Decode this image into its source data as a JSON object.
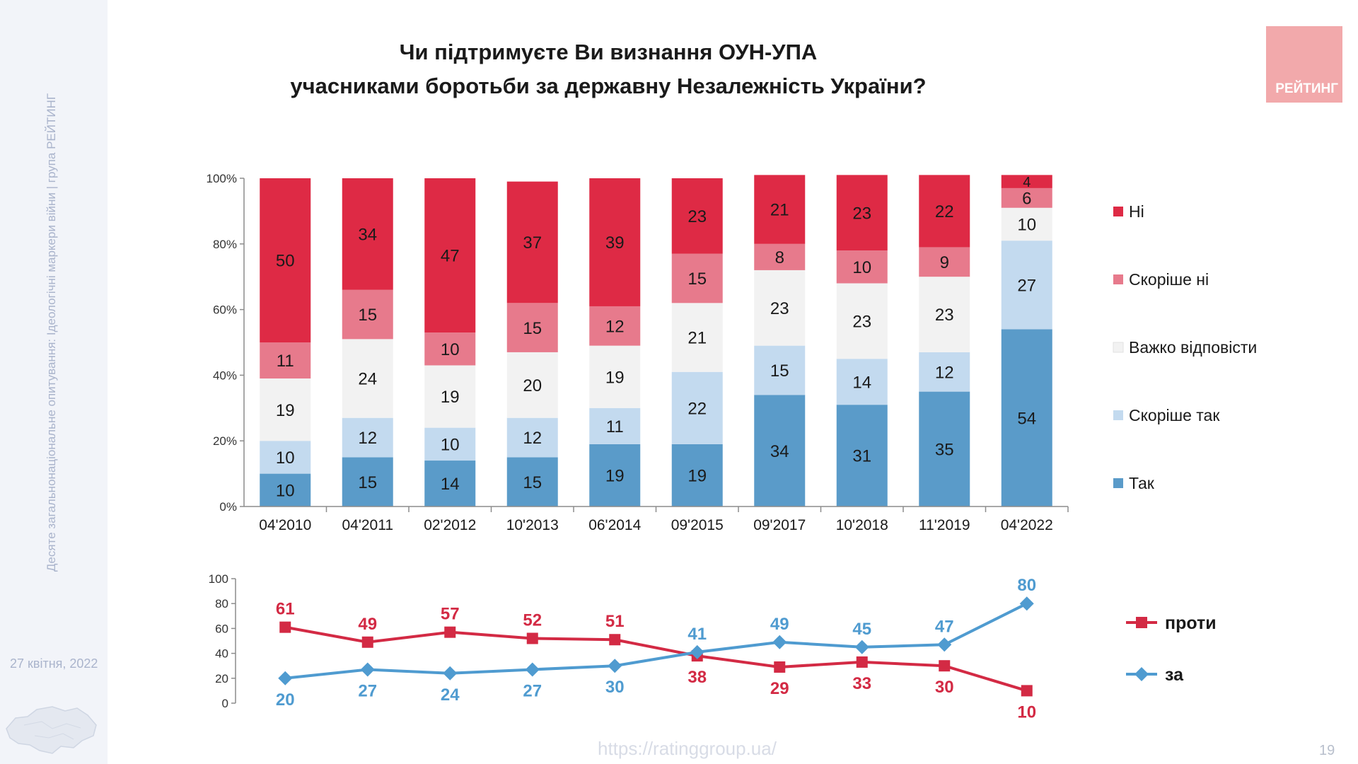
{
  "title_lines": [
    "Чи підтримуєте Ви визнання ОУН-УПА",
    "учасниками боротьби за державну Незалежність України?"
  ],
  "sidebar": {
    "vertical_text": "Десяте загальнонаціональне опитування: Ідеологічні маркери війни  |  група РЕЙТИНГ",
    "date": "27 квітня, 2022"
  },
  "logo_text": "РЕЙТИНГ",
  "footer": {
    "url": "https://ratinggroup.ua/",
    "page": "19"
  },
  "chart_data": [
    {
      "type": "bar",
      "stacked": true,
      "categories": [
        "04'2010",
        "04'2011",
        "02'2012",
        "10'2013",
        "06'2014",
        "09'2015",
        "09'2017",
        "10'2018",
        "11'2019",
        "04'2022"
      ],
      "yticks": [
        "0%",
        "20%",
        "40%",
        "60%",
        "80%",
        "100%"
      ],
      "ylim": [
        0,
        100
      ],
      "legend_position": "right",
      "series": [
        {
          "name": "Так",
          "color": "#5a9bc9",
          "values": [
            10,
            15,
            14,
            15,
            19,
            19,
            34,
            31,
            35,
            54
          ]
        },
        {
          "name": "Скоріше так",
          "color": "#c3daef",
          "values": [
            10,
            12,
            10,
            12,
            11,
            22,
            15,
            14,
            12,
            27
          ]
        },
        {
          "name": "Важко відповісти",
          "color": "#f2f2f2",
          "values": [
            19,
            24,
            19,
            20,
            19,
            21,
            23,
            23,
            23,
            10
          ]
        },
        {
          "name": "Скоріше ні",
          "color": "#e77a8c",
          "values": [
            11,
            15,
            10,
            15,
            12,
            15,
            8,
            10,
            9,
            6
          ]
        },
        {
          "name": "Ні",
          "color": "#de2a45",
          "values": [
            50,
            34,
            47,
            37,
            39,
            23,
            21,
            23,
            22,
            4
          ]
        }
      ]
    },
    {
      "type": "line",
      "categories": [
        "04'2010",
        "04'2011",
        "02'2012",
        "10'2013",
        "06'2014",
        "09'2015",
        "09'2017",
        "10'2018",
        "11'2019",
        "04'2022"
      ],
      "yticks": [
        "0",
        "20",
        "40",
        "60",
        "80",
        "100"
      ],
      "ylim": [
        0,
        100
      ],
      "legend_position": "right",
      "series": [
        {
          "name": "проти",
          "color": "#d32a44",
          "marker": "square",
          "values": [
            61,
            49,
            57,
            52,
            51,
            38,
            29,
            33,
            30,
            10
          ]
        },
        {
          "name": "за",
          "color": "#4f9bd0",
          "marker": "diamond",
          "values": [
            20,
            27,
            24,
            27,
            30,
            41,
            49,
            45,
            47,
            80
          ]
        }
      ]
    }
  ]
}
